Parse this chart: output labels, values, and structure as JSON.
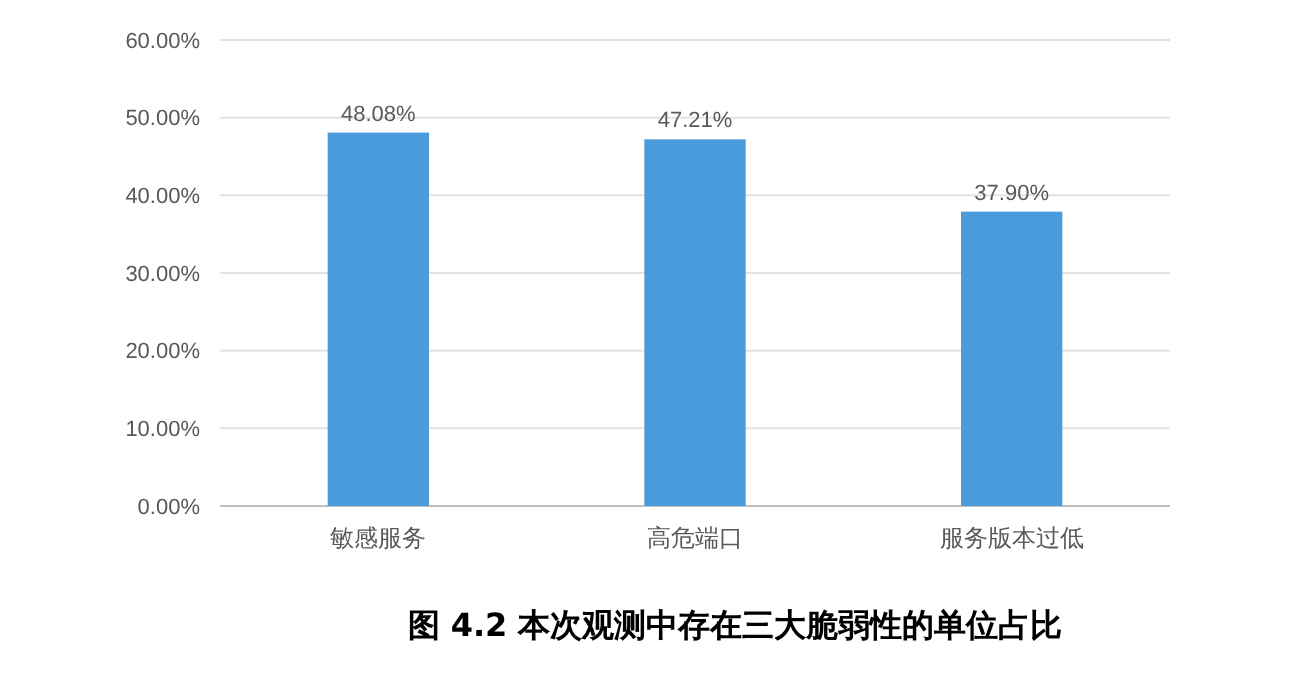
{
  "chart_data": {
    "type": "bar",
    "title": "图 4.2 本次观测中存在三大脆弱性的单位占比",
    "categories": [
      "敏感服务",
      "高危端口",
      "服务版本过低"
    ],
    "values": [
      48.08,
      47.21,
      37.9
    ],
    "value_labels": [
      "48.08%",
      "47.21%",
      "37.90%"
    ],
    "color": "#4a9bdc",
    "ylim": [
      0,
      60
    ],
    "yticks": [
      {
        "value": 0,
        "label": "0.00%"
      },
      {
        "value": 10,
        "label": "10.00%"
      },
      {
        "value": 20,
        "label": "20.00%"
      },
      {
        "value": 30,
        "label": "30.00%"
      },
      {
        "value": 40,
        "label": "40.00%"
      },
      {
        "value": 50,
        "label": "50.00%"
      },
      {
        "value": 60,
        "label": "60.00%"
      }
    ],
    "grid": "y"
  }
}
